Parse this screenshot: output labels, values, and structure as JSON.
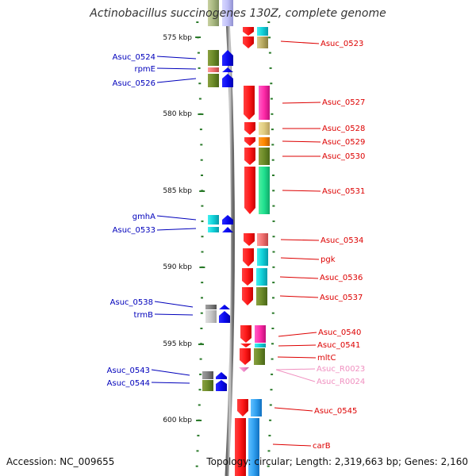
{
  "title": "Actinobacillus succinogenes 130Z, complete genome",
  "accession": "Accession: NC_009655",
  "summary": "Topology: circular; Length: 2,319,663 bp; Genes: 2,160",
  "colors": {
    "forward_label": "#dd0000",
    "reverse_label": "#0000bb",
    "rna_label": "#f090c0",
    "backbone": "#888888",
    "tick": "#2a7a2a"
  },
  "kbp_markers": [
    "575 kbp",
    "580 kbp",
    "585 kbp",
    "590 kbp",
    "595 kbp",
    "600 kbp"
  ],
  "forward_genes": [
    "Asuc_0523",
    "Asuc_0527",
    "Asuc_0528",
    "Asuc_0529",
    "Asuc_0530",
    "Asuc_0531",
    "Asuc_0534",
    "pgk",
    "Asuc_0536",
    "Asuc_0537",
    "Asuc_0540",
    "Asuc_0541",
    "mltC",
    "Asuc_0545",
    "carB"
  ],
  "forward_rna": [
    "Asuc_R0023",
    "Asuc_R0024"
  ],
  "reverse_genes": [
    "Asuc_0524",
    "rpmE",
    "Asuc_0526",
    "gmhA",
    "Asuc_0533",
    "Asuc_0538",
    "trmB",
    "Asuc_0543",
    "Asuc_0544"
  ]
}
